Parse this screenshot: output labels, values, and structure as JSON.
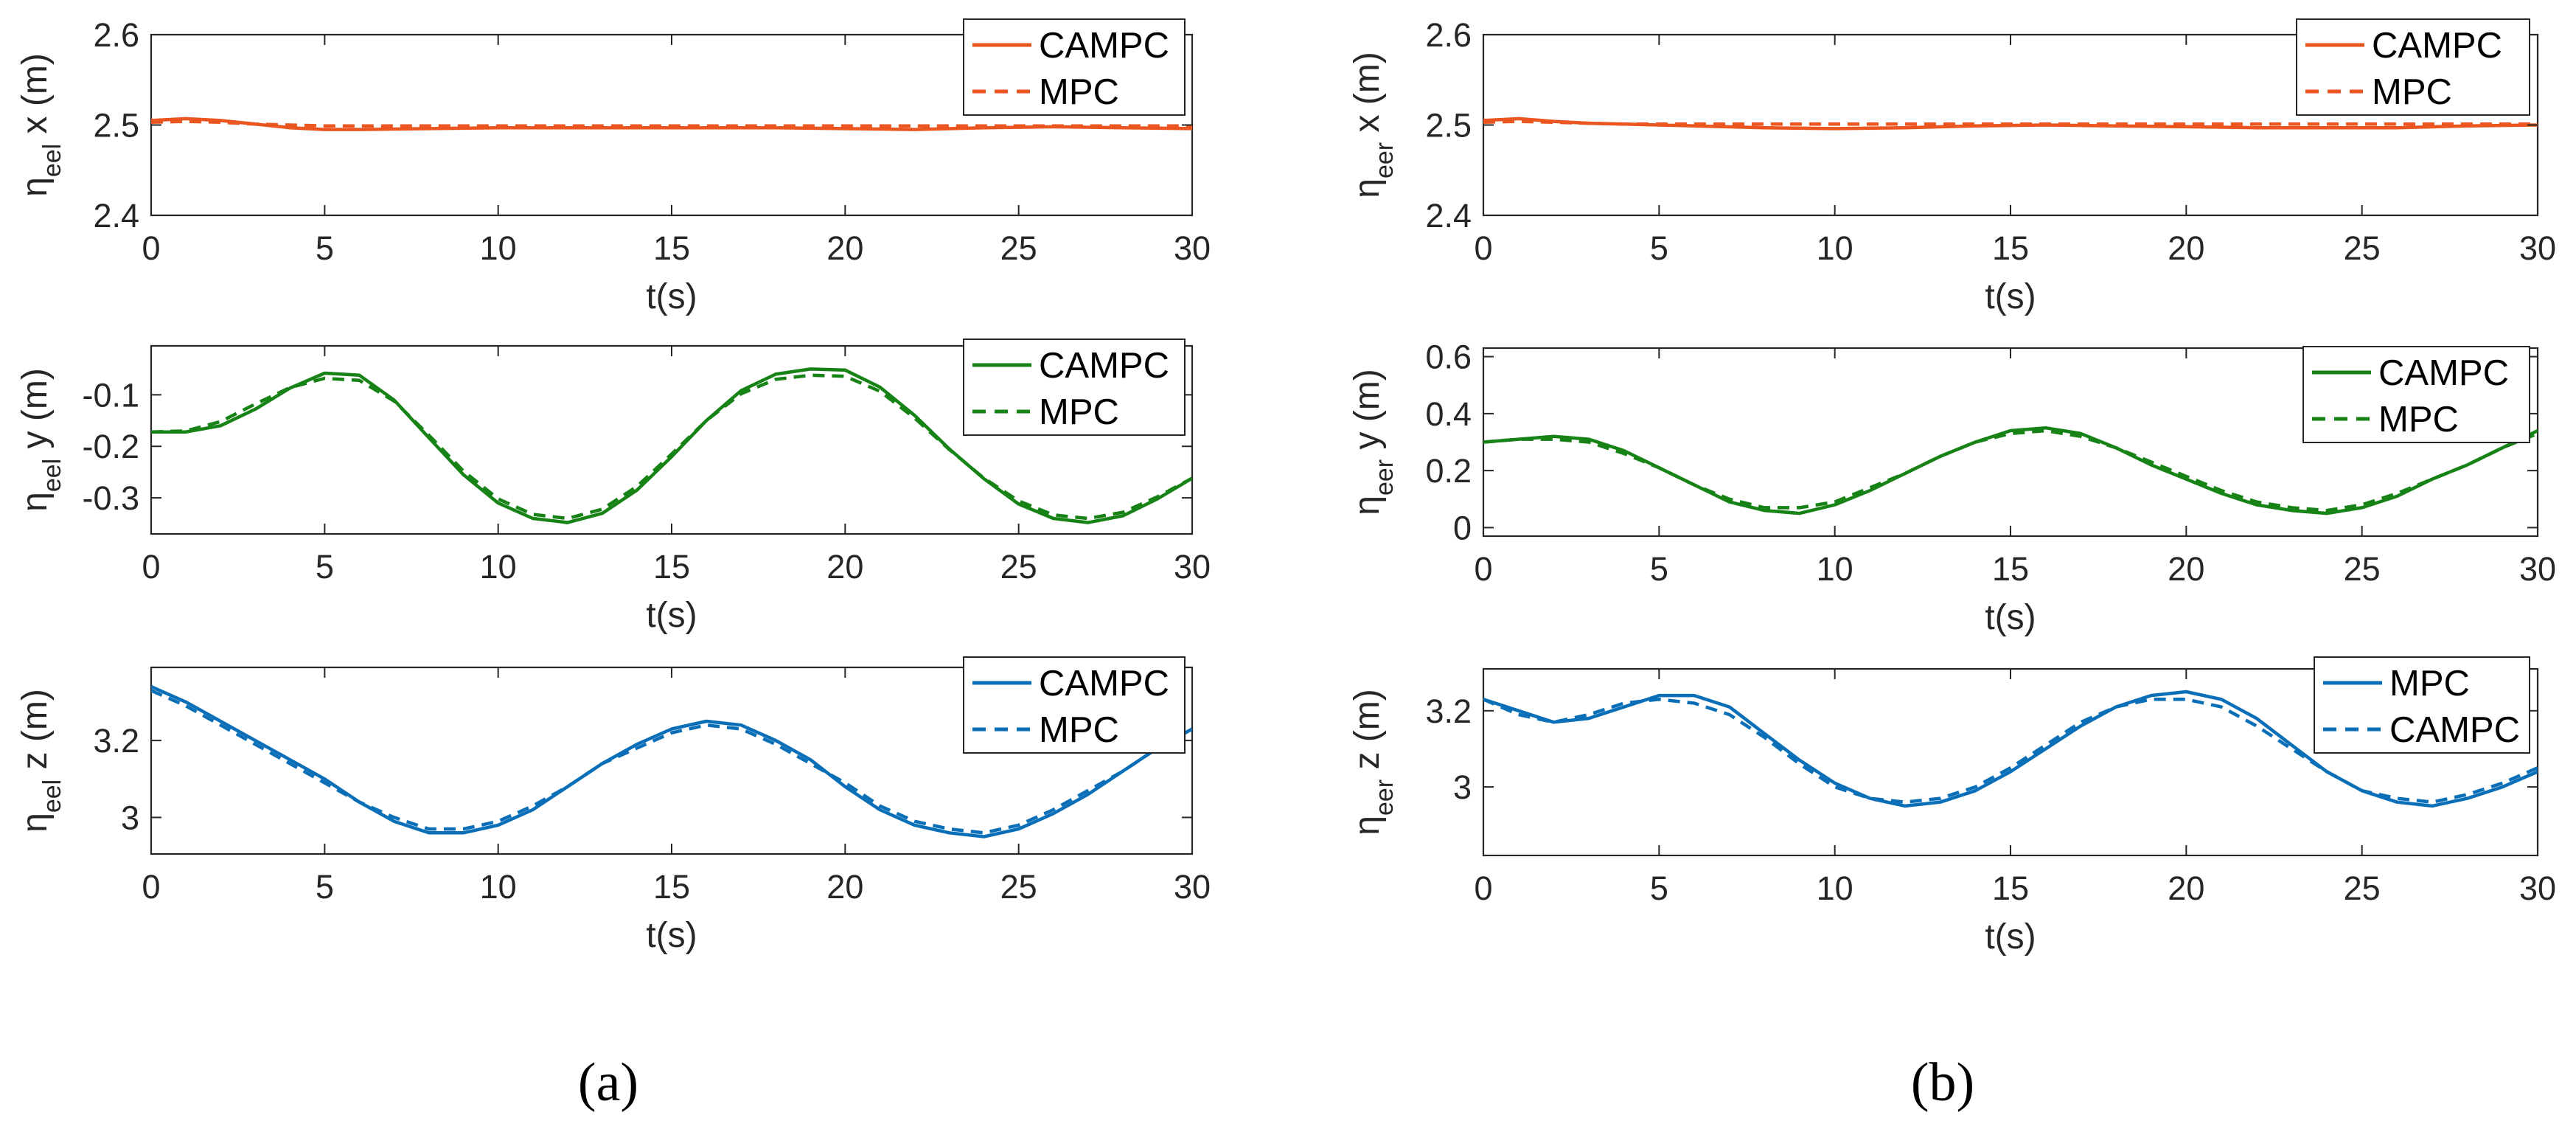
{
  "panel_labels": [
    "(a)",
    "(b)"
  ],
  "chart_data": [
    {
      "id": "a-x",
      "type": "line",
      "panel": "a",
      "ylabel": {
        "sym": "η",
        "sub": "eel",
        "rest": " x (m)"
      },
      "xlabel": "t(s)",
      "xlim": [
        0,
        30
      ],
      "ylim": [
        2.4,
        2.6
      ],
      "xticks": [
        "0",
        "5",
        "10",
        "15",
        "20",
        "25",
        "30"
      ],
      "yticks": [
        2.4,
        2.5,
        2.6
      ],
      "ytick_labels": [
        "2.4",
        "2.5",
        "2.6"
      ],
      "legend": [
        {
          "name": "CAMPC",
          "dash": false
        },
        {
          "name": "MPC",
          "dash": true
        }
      ],
      "color": "#ea5520",
      "series": [
        {
          "name": "CAMPC",
          "dash": false,
          "x": [
            0,
            1,
            2,
            3,
            4,
            5,
            6,
            8,
            10,
            12,
            14,
            16,
            18,
            20,
            22,
            24,
            26,
            28,
            30
          ],
          "y": [
            2.505,
            2.507,
            2.505,
            2.501,
            2.497,
            2.495,
            2.495,
            2.496,
            2.497,
            2.497,
            2.497,
            2.497,
            2.497,
            2.496,
            2.495,
            2.497,
            2.498,
            2.497,
            2.496
          ]
        },
        {
          "name": "MPC",
          "dash": true,
          "x": [
            0,
            1,
            2,
            3,
            4,
            5,
            6,
            8,
            10,
            12,
            14,
            16,
            18,
            20,
            22,
            24,
            26,
            28,
            30
          ],
          "y": [
            2.503,
            2.504,
            2.503,
            2.501,
            2.5,
            2.499,
            2.499,
            2.499,
            2.499,
            2.499,
            2.499,
            2.499,
            2.499,
            2.499,
            2.499,
            2.499,
            2.499,
            2.499,
            2.499
          ]
        }
      ]
    },
    {
      "id": "a-y",
      "type": "line",
      "panel": "a",
      "ylabel": {
        "sym": "η",
        "sub": "eel",
        "rest": " y (m)"
      },
      "xlabel": "t(s)",
      "xlim": [
        0,
        30
      ],
      "ylim": [
        -0.37,
        -0.005
      ],
      "xticks": [
        "0",
        "5",
        "10",
        "15",
        "20",
        "25",
        "30"
      ],
      "yticks": [
        -0.3,
        -0.2,
        -0.1
      ],
      "ytick_labels": [
        "-0.3",
        "-0.2",
        "-0.1"
      ],
      "legend": [
        {
          "name": "CAMPC",
          "dash": false
        },
        {
          "name": "MPC",
          "dash": true
        }
      ],
      "color": "#178317",
      "series": [
        {
          "name": "CAMPC",
          "dash": false,
          "x": [
            0,
            1,
            2,
            3,
            4,
            5,
            6,
            7,
            8,
            9,
            10,
            11,
            12,
            13,
            14,
            15,
            16,
            17,
            18,
            19,
            20,
            21,
            22,
            23,
            24,
            25,
            26,
            27,
            28,
            29,
            30
          ],
          "y": [
            -0.172,
            -0.172,
            -0.16,
            -0.128,
            -0.087,
            -0.058,
            -0.062,
            -0.11,
            -0.183,
            -0.255,
            -0.31,
            -0.34,
            -0.348,
            -0.33,
            -0.285,
            -0.22,
            -0.15,
            -0.092,
            -0.06,
            -0.05,
            -0.052,
            -0.085,
            -0.14,
            -0.205,
            -0.263,
            -0.312,
            -0.34,
            -0.348,
            -0.335,
            -0.302,
            -0.262
          ]
        },
        {
          "name": "MPC",
          "dash": true,
          "x": [
            0,
            1,
            2,
            3,
            4,
            5,
            6,
            7,
            8,
            9,
            10,
            11,
            12,
            13,
            14,
            15,
            16,
            17,
            18,
            19,
            20,
            21,
            22,
            23,
            24,
            25,
            26,
            27,
            28,
            29,
            30
          ],
          "y": [
            -0.172,
            -0.17,
            -0.152,
            -0.118,
            -0.086,
            -0.068,
            -0.072,
            -0.112,
            -0.178,
            -0.248,
            -0.302,
            -0.332,
            -0.34,
            -0.322,
            -0.278,
            -0.215,
            -0.15,
            -0.098,
            -0.07,
            -0.062,
            -0.064,
            -0.093,
            -0.145,
            -0.206,
            -0.262,
            -0.306,
            -0.333,
            -0.34,
            -0.328,
            -0.298,
            -0.262
          ]
        }
      ]
    },
    {
      "id": "a-z",
      "type": "line",
      "panel": "a",
      "ylabel": {
        "sym": "η",
        "sub": "eel",
        "rest": " z (m)"
      },
      "xlabel": "t(s)",
      "xlim": [
        0,
        30
      ],
      "ylim": [
        2.905,
        3.39
      ],
      "xticks": [
        "0",
        "5",
        "10",
        "15",
        "20",
        "25",
        "30"
      ],
      "yticks": [
        3.0,
        3.2
      ],
      "ytick_labels": [
        "3",
        "3.2"
      ],
      "legend": [
        {
          "name": "CAMPC",
          "dash": false
        },
        {
          "name": "MPC",
          "dash": true
        }
      ],
      "color": "#0b6fb8",
      "series": [
        {
          "name": "CAMPC",
          "dash": false,
          "x": [
            0,
            1,
            2,
            3,
            4,
            5,
            6,
            7,
            8,
            9,
            10,
            11,
            12,
            13,
            14,
            15,
            16,
            17,
            18,
            19,
            20,
            21,
            22,
            23,
            24,
            25,
            26,
            27,
            28,
            29,
            30
          ],
          "y": [
            3.34,
            3.3,
            3.25,
            3.2,
            3.15,
            3.1,
            3.04,
            2.99,
            2.96,
            2.96,
            2.98,
            3.02,
            3.08,
            3.14,
            3.19,
            3.23,
            3.25,
            3.24,
            3.2,
            3.15,
            3.08,
            3.02,
            2.98,
            2.96,
            2.95,
            2.97,
            3.01,
            3.06,
            3.12,
            3.18,
            3.23
          ]
        },
        {
          "name": "MPC",
          "dash": true,
          "x": [
            0,
            1,
            2,
            3,
            4,
            5,
            6,
            7,
            8,
            9,
            10,
            11,
            12,
            13,
            14,
            15,
            16,
            17,
            18,
            19,
            20,
            21,
            22,
            23,
            24,
            25,
            26,
            27,
            28,
            29,
            30
          ],
          "y": [
            3.33,
            3.29,
            3.24,
            3.19,
            3.14,
            3.09,
            3.04,
            3.0,
            2.97,
            2.97,
            2.99,
            3.03,
            3.08,
            3.14,
            3.18,
            3.22,
            3.24,
            3.23,
            3.19,
            3.14,
            3.09,
            3.03,
            2.99,
            2.97,
            2.96,
            2.98,
            3.02,
            3.07,
            3.12,
            3.18,
            3.23
          ]
        }
      ]
    },
    {
      "id": "b-x",
      "type": "line",
      "panel": "b",
      "ylabel": {
        "sym": "η",
        "sub": "eer",
        "rest": " x (m)"
      },
      "xlabel": "t(s)",
      "xlim": [
        0,
        30
      ],
      "ylim": [
        2.4,
        2.6
      ],
      "xticks": [
        "0",
        "5",
        "10",
        "15",
        "20",
        "25",
        "30"
      ],
      "yticks": [
        2.4,
        2.5,
        2.6
      ],
      "ytick_labels": [
        "2.4",
        "2.5",
        "2.6"
      ],
      "legend": [
        {
          "name": "CAMPC",
          "dash": false
        },
        {
          "name": "MPC",
          "dash": true
        }
      ],
      "color": "#ea5520",
      "series": [
        {
          "name": "CAMPC",
          "dash": false,
          "x": [
            0,
            1,
            2,
            3,
            4,
            5,
            6,
            8,
            10,
            12,
            14,
            16,
            18,
            20,
            22,
            24,
            26,
            28,
            30
          ],
          "y": [
            2.505,
            2.507,
            2.504,
            2.502,
            2.501,
            2.5,
            2.499,
            2.497,
            2.496,
            2.497,
            2.499,
            2.5,
            2.499,
            2.498,
            2.497,
            2.497,
            2.497,
            2.499,
            2.5
          ]
        },
        {
          "name": "MPC",
          "dash": true,
          "x": [
            0,
            1,
            2,
            3,
            4,
            5,
            6,
            8,
            10,
            12,
            14,
            16,
            18,
            20,
            22,
            24,
            26,
            28,
            30
          ],
          "y": [
            2.503,
            2.504,
            2.503,
            2.502,
            2.501,
            2.501,
            2.501,
            2.501,
            2.501,
            2.501,
            2.501,
            2.501,
            2.501,
            2.501,
            2.501,
            2.501,
            2.501,
            2.501,
            2.501
          ]
        }
      ]
    },
    {
      "id": "b-y",
      "type": "line",
      "panel": "b",
      "ylabel": {
        "sym": "η",
        "sub": "eer",
        "rest": " y (m)"
      },
      "xlabel": "t(s)",
      "xlim": [
        0,
        30
      ],
      "ylim": [
        -0.03,
        0.63
      ],
      "xticks": [
        "0",
        "5",
        "10",
        "15",
        "20",
        "25",
        "30"
      ],
      "yticks": [
        0,
        0.2,
        0.4,
        0.6
      ],
      "ytick_labels": [
        "0",
        "0.2",
        "0.4",
        "0.6"
      ],
      "legend": [
        {
          "name": "CAMPC",
          "dash": false
        },
        {
          "name": "MPC",
          "dash": true
        }
      ],
      "color": "#178317",
      "series": [
        {
          "name": "CAMPC",
          "dash": false,
          "x": [
            0,
            1,
            2,
            3,
            4,
            5,
            6,
            7,
            8,
            9,
            10,
            11,
            12,
            13,
            14,
            15,
            16,
            17,
            18,
            19,
            20,
            21,
            22,
            23,
            24,
            25,
            26,
            27,
            28,
            29,
            30
          ],
          "y": [
            0.3,
            0.31,
            0.32,
            0.31,
            0.27,
            0.21,
            0.15,
            0.09,
            0.06,
            0.05,
            0.08,
            0.13,
            0.19,
            0.25,
            0.3,
            0.34,
            0.35,
            0.33,
            0.28,
            0.22,
            0.17,
            0.12,
            0.08,
            0.06,
            0.05,
            0.07,
            0.11,
            0.17,
            0.22,
            0.28,
            0.34
          ]
        },
        {
          "name": "MPC",
          "dash": true,
          "x": [
            0,
            1,
            2,
            3,
            4,
            5,
            6,
            7,
            8,
            9,
            10,
            11,
            12,
            13,
            14,
            15,
            16,
            17,
            18,
            19,
            20,
            21,
            22,
            23,
            24,
            25,
            26,
            27,
            28,
            29,
            30
          ],
          "y": [
            0.3,
            0.31,
            0.31,
            0.3,
            0.26,
            0.21,
            0.15,
            0.1,
            0.07,
            0.07,
            0.09,
            0.14,
            0.19,
            0.25,
            0.3,
            0.33,
            0.34,
            0.32,
            0.28,
            0.23,
            0.18,
            0.13,
            0.09,
            0.07,
            0.06,
            0.08,
            0.12,
            0.17,
            0.22,
            0.28,
            0.33
          ]
        }
      ]
    },
    {
      "id": "b-z",
      "type": "line",
      "panel": "b",
      "ylabel": {
        "sym": "η",
        "sub": "eer",
        "rest": " z (m)"
      },
      "xlabel": "t(s)",
      "xlim": [
        0,
        30
      ],
      "ylim": [
        2.82,
        3.31
      ],
      "xticks": [
        "0",
        "5",
        "10",
        "15",
        "20",
        "25",
        "30"
      ],
      "yticks": [
        3.0,
        3.2
      ],
      "ytick_labels": [
        "3",
        "3.2"
      ],
      "legend": [
        {
          "name": "MPC",
          "dash": false
        },
        {
          "name": "CAMPC",
          "dash": true
        }
      ],
      "color": "#0b6fb8",
      "series": [
        {
          "name": "MPC",
          "dash": false,
          "x": [
            0,
            1,
            2,
            3,
            4,
            5,
            6,
            7,
            8,
            9,
            10,
            11,
            12,
            13,
            14,
            15,
            16,
            17,
            18,
            19,
            20,
            21,
            22,
            23,
            24,
            25,
            26,
            27,
            28,
            29,
            30
          ],
          "y": [
            3.23,
            3.2,
            3.17,
            3.18,
            3.21,
            3.24,
            3.24,
            3.21,
            3.14,
            3.07,
            3.01,
            2.97,
            2.95,
            2.96,
            2.99,
            3.04,
            3.1,
            3.16,
            3.21,
            3.24,
            3.25,
            3.23,
            3.18,
            3.11,
            3.04,
            2.99,
            2.96,
            2.95,
            2.97,
            3.0,
            3.04
          ]
        },
        {
          "name": "CAMPC",
          "dash": true,
          "x": [
            0,
            1,
            2,
            3,
            4,
            5,
            6,
            7,
            8,
            9,
            10,
            11,
            12,
            13,
            14,
            15,
            16,
            17,
            18,
            19,
            20,
            21,
            22,
            23,
            24,
            25,
            26,
            27,
            28,
            29,
            30
          ],
          "y": [
            3.23,
            3.19,
            3.17,
            3.19,
            3.22,
            3.23,
            3.22,
            3.19,
            3.13,
            3.06,
            3.0,
            2.97,
            2.96,
            2.97,
            3.0,
            3.05,
            3.11,
            3.17,
            3.21,
            3.23,
            3.23,
            3.21,
            3.16,
            3.1,
            3.04,
            2.99,
            2.97,
            2.96,
            2.98,
            3.01,
            3.05
          ]
        }
      ]
    }
  ]
}
